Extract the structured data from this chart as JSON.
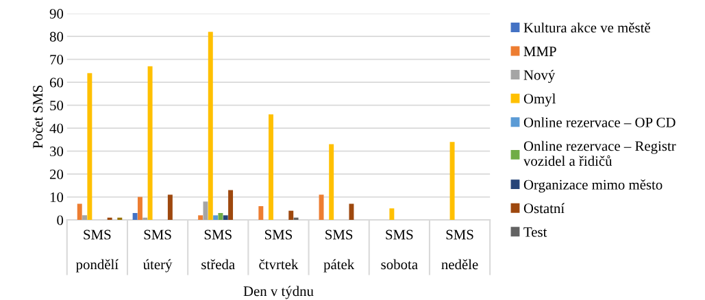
{
  "chart_data": {
    "type": "bar",
    "xlabel": "Den v týdnu",
    "ylabel": "Počet SMS",
    "categories": [
      "SMS\n\npondělí",
      "SMS\n\núterý",
      "SMS\n\nstředa",
      "SMS\n\nčtvrtek",
      "SMS\n\npátek",
      "SMS\n\nsobota",
      "SMS\n\nneděle"
    ],
    "series": [
      {
        "name": "Kultura akce ve městě",
        "color": "#4472c4",
        "values": [
          0,
          3,
          0,
          0,
          0,
          0,
          0
        ]
      },
      {
        "name": "MMP",
        "color": "#ed7d31",
        "values": [
          7,
          10,
          2,
          6,
          11,
          0,
          0
        ]
      },
      {
        "name": "Nový",
        "color": "#a5a5a5",
        "values": [
          2,
          1,
          8,
          0,
          0,
          0,
          0
        ]
      },
      {
        "name": "Omyl",
        "color": "#ffc000",
        "values": [
          64,
          67,
          82,
          46,
          33,
          5,
          34
        ]
      },
      {
        "name": "Online rezervace – OP CD",
        "color": "#5b9bd5",
        "values": [
          0,
          0,
          2,
          0,
          0,
          0,
          0
        ]
      },
      {
        "name": "Online rezervace – Registr\nvozidel a řidičů",
        "color": "#70ad47",
        "values": [
          0,
          0,
          3,
          0,
          0,
          0,
          0
        ]
      },
      {
        "name": "Organizace mimo město",
        "color": "#264478",
        "values": [
          0,
          0,
          2,
          0,
          0,
          0,
          0
        ]
      },
      {
        "name": "Ostatní",
        "color": "#9e480e",
        "values": [
          1,
          11,
          13,
          4,
          7,
          0,
          0
        ]
      },
      {
        "name": "Test",
        "color": "#636363",
        "values": [
          0,
          0,
          0,
          1,
          0,
          0,
          0
        ]
      },
      {
        "color": "#997300",
        "values": [
          1,
          0,
          0,
          0,
          0,
          0,
          0
        ]
      }
    ],
    "ylim": [
      0,
      90
    ],
    "yticks": [
      0,
      10,
      20,
      30,
      40,
      50,
      60,
      70,
      80,
      90
    ],
    "grid": "y",
    "legend": "right"
  }
}
